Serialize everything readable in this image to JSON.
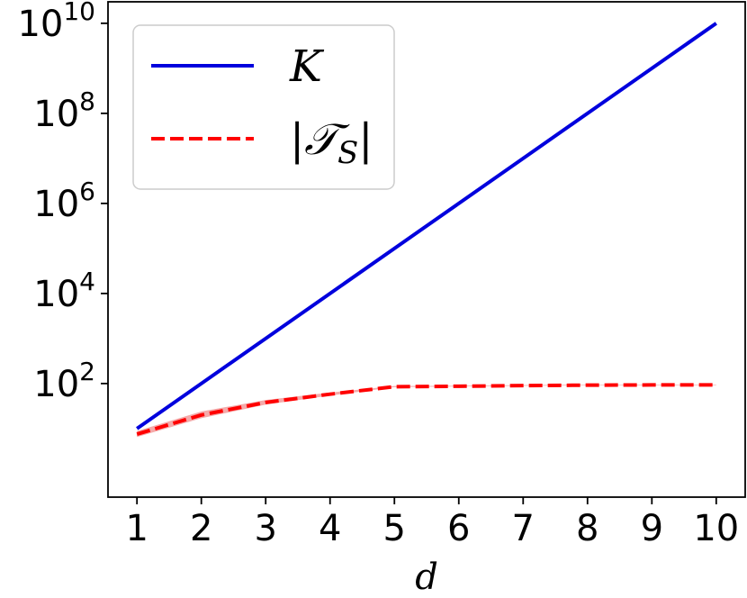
{
  "chart_data": {
    "type": "line",
    "title": "",
    "xlabel": "d",
    "ylabel": "",
    "yscale": "log",
    "x": [
      1,
      2,
      3,
      4,
      5,
      6,
      7,
      8,
      9,
      10
    ],
    "xlim": [
      0.55,
      10.45
    ],
    "ylim": [
      0.3,
      30000000000
    ],
    "xticks": [
      "1",
      "2",
      "3",
      "4",
      "5",
      "6",
      "7",
      "8",
      "9",
      "10"
    ],
    "yticks": [
      {
        "value": 100,
        "base": "10",
        "exp": "2"
      },
      {
        "value": 10000,
        "base": "10",
        "exp": "4"
      },
      {
        "value": 1000000,
        "base": "10",
        "exp": "6"
      },
      {
        "value": 100000000,
        "base": "10",
        "exp": "8"
      },
      {
        "value": 10000000000,
        "base": "10",
        "exp": "10"
      }
    ],
    "grid": false,
    "legend_position": "top-left",
    "series": [
      {
        "name": "K",
        "color": "#0000dd",
        "style": "solid",
        "values": [
          10,
          100,
          1000,
          10000,
          100000,
          1000000,
          10000000,
          100000000,
          1000000000,
          10000000000
        ]
      },
      {
        "name": "|𝒯S|",
        "name_main": "|𝒯",
        "name_sub": "S",
        "name_tail": "|",
        "color": "#ff0000",
        "style": "dashed",
        "band_color": "#f4aaaa",
        "values": [
          7.5,
          20,
          38,
          58,
          85,
          87,
          90,
          92,
          93,
          93
        ],
        "lower": [
          6.5,
          17,
          34,
          54,
          83,
          86,
          89,
          91,
          92,
          92
        ],
        "upper": [
          8.8,
          24,
          43,
          63,
          88,
          89,
          92,
          94,
          95,
          95
        ]
      }
    ]
  }
}
